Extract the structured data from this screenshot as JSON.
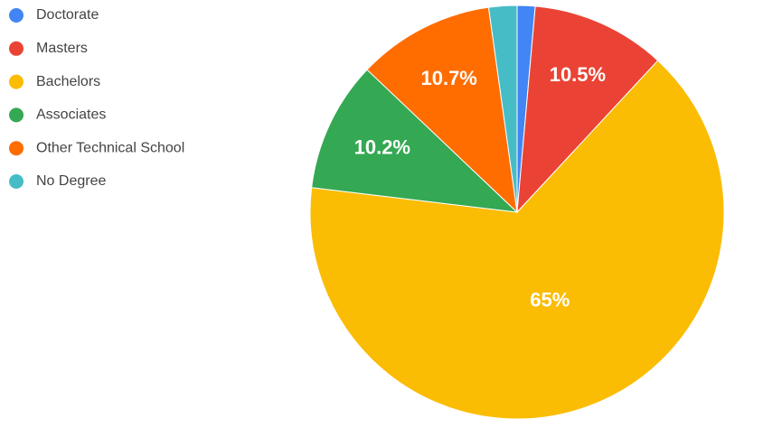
{
  "chart_data": {
    "type": "pie",
    "categories": [
      "Doctorate",
      "Masters",
      "Bachelors",
      "Associates",
      "Other Technical School",
      "No Degree"
    ],
    "values": [
      1.4,
      10.5,
      65,
      10.2,
      10.7,
      2.2
    ],
    "value_labels": [
      null,
      "10.5%",
      "65%",
      "10.2%",
      "10.7%",
      null
    ],
    "colors": [
      "#4285f4",
      "#ea4335",
      "#fbbc04",
      "#34a853",
      "#ff6d01",
      "#46bdc6"
    ],
    "legend": "left"
  }
}
